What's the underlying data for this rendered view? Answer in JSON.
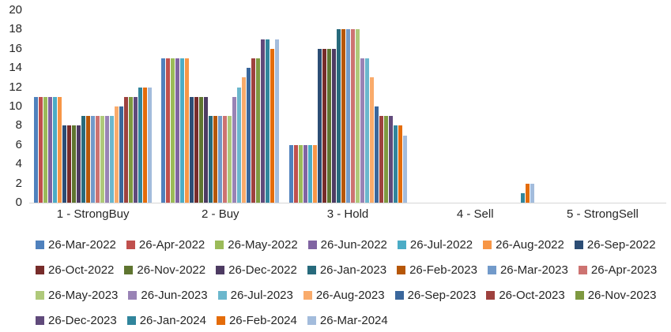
{
  "chart_data": {
    "type": "bar",
    "title": "",
    "xlabel": "",
    "ylabel": "",
    "categories": [
      "1 - StrongBuy",
      "2 - Buy",
      "3 - Hold",
      "4 - Sell",
      "5 - StrongSell"
    ],
    "ylim": [
      0,
      20
    ],
    "ytick_step": 2,
    "grid": false,
    "legend_position": "bottom",
    "legend_rows": [
      7,
      7,
      7,
      4
    ],
    "series": [
      {
        "name": "26-Mar-2022",
        "color": "#4F81BD",
        "values": [
          11,
          15,
          6,
          0,
          0
        ]
      },
      {
        "name": "26-Apr-2022",
        "color": "#C0504D",
        "values": [
          11,
          15,
          6,
          0,
          0
        ]
      },
      {
        "name": "26-May-2022",
        "color": "#9BBB59",
        "values": [
          11,
          15,
          6,
          0,
          0
        ]
      },
      {
        "name": "26-Jun-2022",
        "color": "#8064A2",
        "values": [
          11,
          15,
          6,
          0,
          0
        ]
      },
      {
        "name": "26-Jul-2022",
        "color": "#4BACC6",
        "values": [
          11,
          15,
          6,
          0,
          0
        ]
      },
      {
        "name": "26-Aug-2022",
        "color": "#F79646",
        "values": [
          11,
          15,
          6,
          0,
          0
        ]
      },
      {
        "name": "26-Sep-2022",
        "color": "#2C4D75",
        "values": [
          8,
          11,
          16,
          0,
          0
        ]
      },
      {
        "name": "26-Oct-2022",
        "color": "#772C2A",
        "values": [
          8,
          11,
          16,
          0,
          0
        ]
      },
      {
        "name": "26-Nov-2022",
        "color": "#5F7530",
        "values": [
          8,
          11,
          16,
          0,
          0
        ]
      },
      {
        "name": "26-Dec-2022",
        "color": "#4D3B62",
        "values": [
          8,
          11,
          16,
          0,
          0
        ]
      },
      {
        "name": "26-Jan-2023",
        "color": "#276A7C",
        "values": [
          9,
          9,
          18,
          0,
          0
        ]
      },
      {
        "name": "26-Feb-2023",
        "color": "#B65708",
        "values": [
          9,
          9,
          18,
          0,
          0
        ]
      },
      {
        "name": "26-Mar-2023",
        "color": "#729ACA",
        "values": [
          9,
          9,
          18,
          0,
          0
        ]
      },
      {
        "name": "26-Apr-2023",
        "color": "#CD7371",
        "values": [
          9,
          9,
          18,
          0,
          0
        ]
      },
      {
        "name": "26-May-2023",
        "color": "#AFC97A",
        "values": [
          9,
          9,
          18,
          0,
          0
        ]
      },
      {
        "name": "26-Jun-2023",
        "color": "#9983B5",
        "values": [
          9,
          11,
          15,
          0,
          0
        ]
      },
      {
        "name": "26-Jul-2023",
        "color": "#6BB7CD",
        "values": [
          9,
          12,
          15,
          0,
          0
        ]
      },
      {
        "name": "26-Aug-2023",
        "color": "#F9AB6B",
        "values": [
          10,
          13,
          13,
          0,
          0
        ]
      },
      {
        "name": "26-Sep-2023",
        "color": "#3A679C",
        "values": [
          10,
          14,
          10,
          0,
          0
        ]
      },
      {
        "name": "26-Oct-2023",
        "color": "#9E413E",
        "values": [
          11,
          15,
          9,
          0,
          0
        ]
      },
      {
        "name": "26-Nov-2023",
        "color": "#7E9940",
        "values": [
          11,
          15,
          9,
          0,
          0
        ]
      },
      {
        "name": "26-Dec-2023",
        "color": "#604A7B",
        "values": [
          11,
          17,
          9,
          0,
          0
        ]
      },
      {
        "name": "26-Jan-2024",
        "color": "#31859C",
        "values": [
          12,
          17,
          8,
          1,
          0
        ]
      },
      {
        "name": "26-Feb-2024",
        "color": "#E46C0A",
        "values": [
          12,
          16,
          8,
          2,
          0
        ]
      },
      {
        "name": "26-Mar-2024",
        "color": "#A3BCDC",
        "values": [
          12,
          17,
          7,
          2,
          0
        ]
      }
    ]
  },
  "colors": {
    "background": "#FFFFFF",
    "axis_line": "#D6D6D6",
    "text": "#262626"
  }
}
